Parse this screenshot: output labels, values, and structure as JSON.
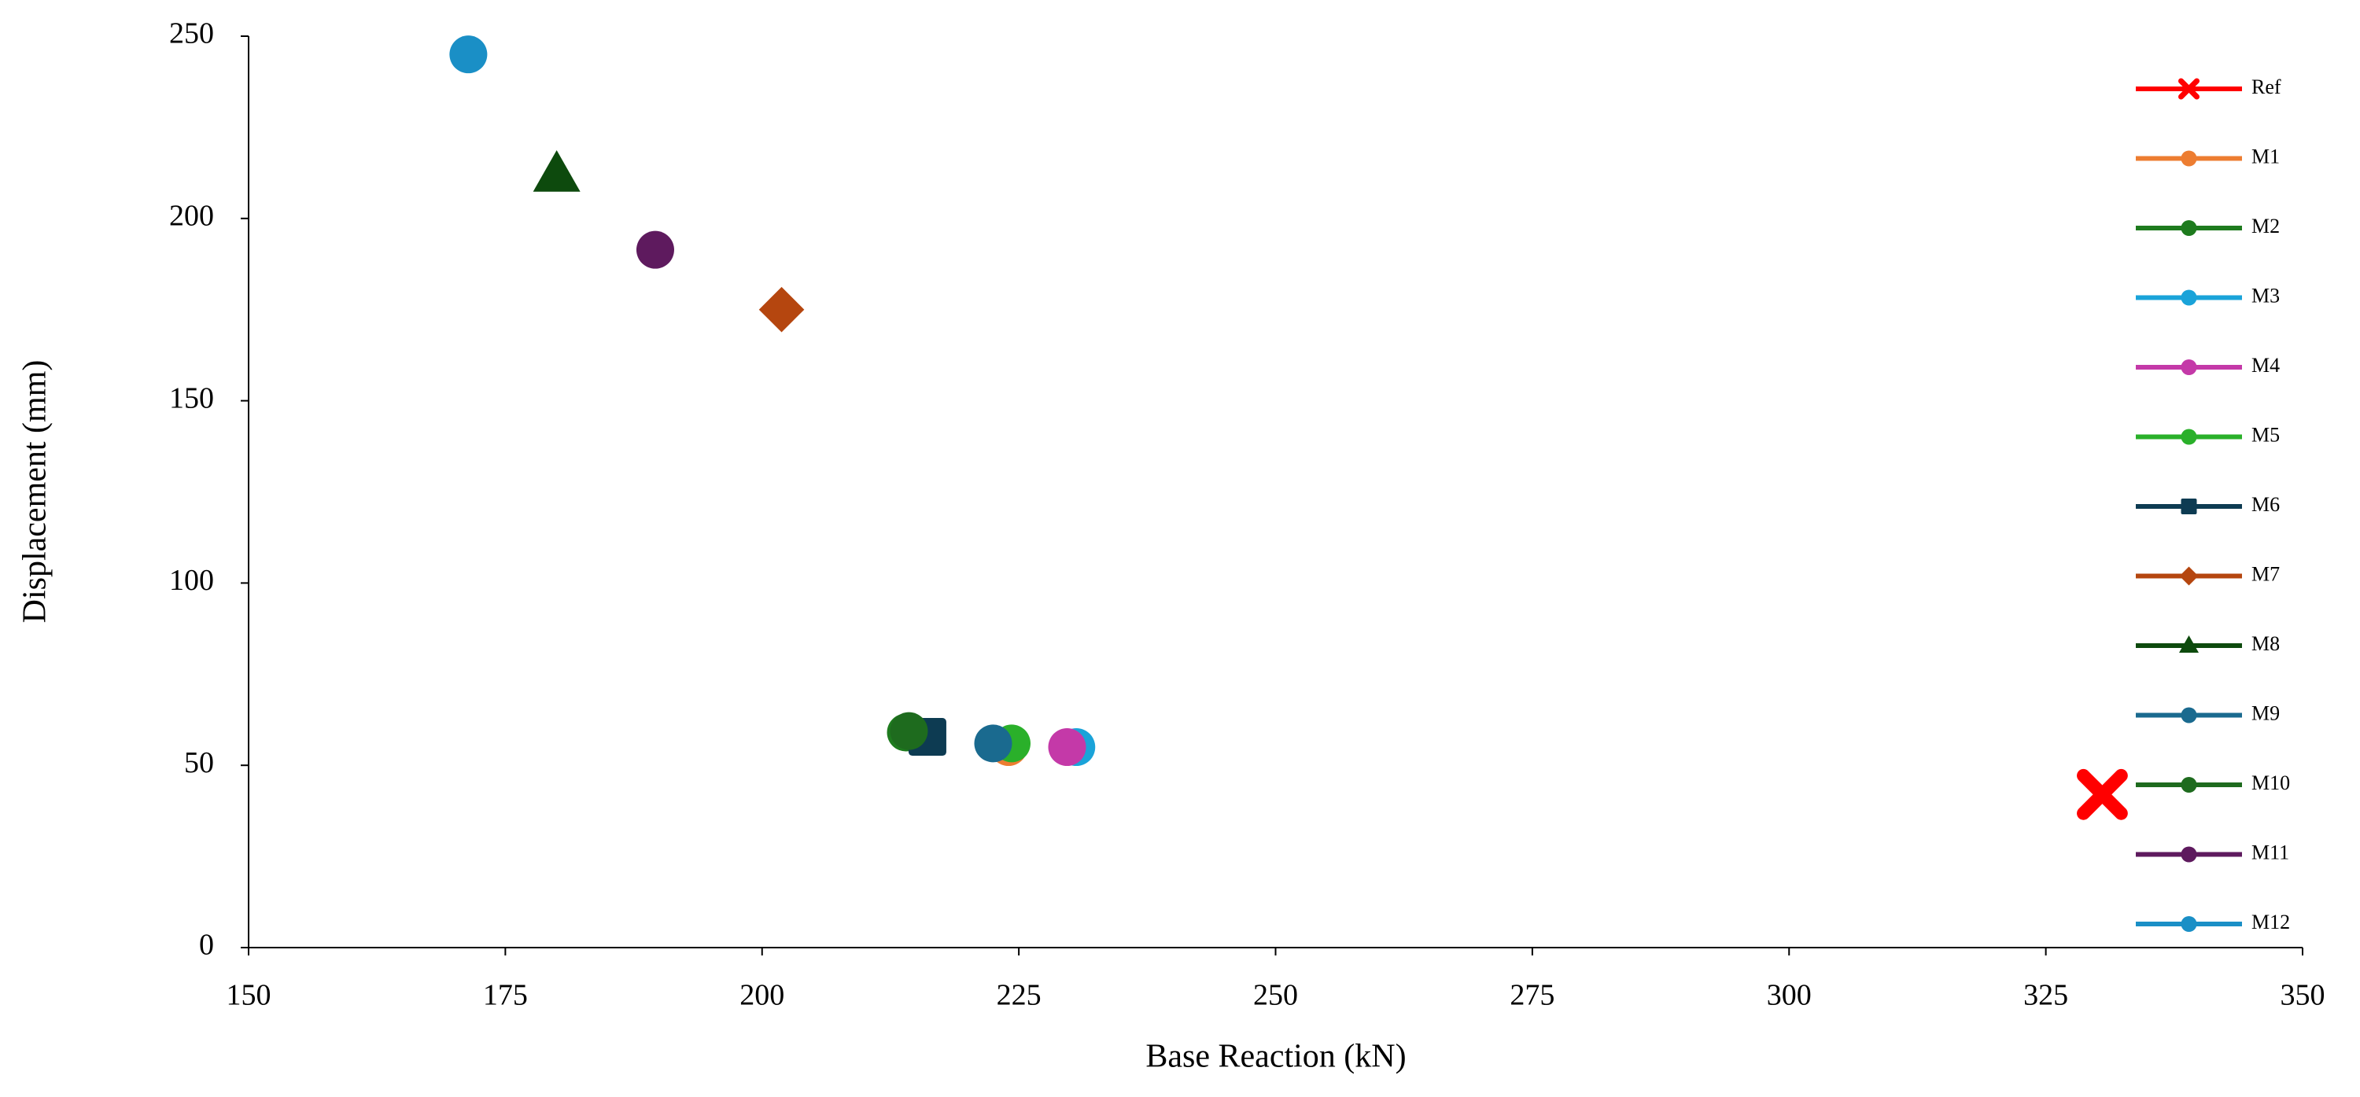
{
  "chart_data": {
    "type": "scatter",
    "x_label": "Base Reaction (kN)",
    "y_label": "Displacement (mm)",
    "xlim": [
      150,
      350
    ],
    "xticks": [
      150,
      175,
      200,
      225,
      250,
      275,
      300,
      325,
      350
    ],
    "ylim": [
      0,
      250
    ],
    "yticks": [
      0,
      50,
      100,
      150,
      200,
      250
    ],
    "grid": false,
    "legend": "right",
    "series": [
      {
        "name": "Ref",
        "color": "#ff0000",
        "marker": "x",
        "x": [
          330.5
        ],
        "y": [
          42
        ]
      },
      {
        "name": "M1",
        "color": "#ed7d31",
        "marker": "circle",
        "x": [
          224
        ],
        "y": [
          55
        ]
      },
      {
        "name": "M2",
        "color": "#1e7b1e",
        "marker": "circle",
        "x": [
          214
        ],
        "y": [
          59
        ]
      },
      {
        "name": "M3",
        "color": "#1aa3d9",
        "marker": "circle",
        "x": [
          230.6
        ],
        "y": [
          55
        ]
      },
      {
        "name": "M4",
        "color": "#c439a8",
        "marker": "circle",
        "x": [
          229.7
        ],
        "y": [
          55
        ]
      },
      {
        "name": "M5",
        "color": "#2ab02a",
        "marker": "circle",
        "x": [
          224.3
        ],
        "y": [
          56
        ]
      },
      {
        "name": "M6",
        "color": "#0d3b52",
        "marker": "square",
        "x": [
          216.1
        ],
        "y": [
          57.8
        ]
      },
      {
        "name": "M7",
        "color": "#b5460f",
        "marker": "diamond",
        "x": [
          201.9
        ],
        "y": [
          175
        ]
      },
      {
        "name": "M8",
        "color": "#0d4a0d",
        "marker": "triangle",
        "x": [
          180
        ],
        "y": [
          212
        ]
      },
      {
        "name": "M9",
        "color": "#1a6a8f",
        "marker": "circle",
        "x": [
          222.5
        ],
        "y": [
          56
        ]
      },
      {
        "name": "M10",
        "color": "#1e6b1e",
        "marker": "circle",
        "x": [
          214.3
        ],
        "y": [
          59.4
        ]
      },
      {
        "name": "M11",
        "color": "#5e1a5e",
        "marker": "circle",
        "x": [
          189.6
        ],
        "y": [
          191.4
        ]
      },
      {
        "name": "M12",
        "color": "#1a8fc6",
        "marker": "circle",
        "x": [
          171.4
        ],
        "y": [
          245
        ]
      }
    ]
  }
}
